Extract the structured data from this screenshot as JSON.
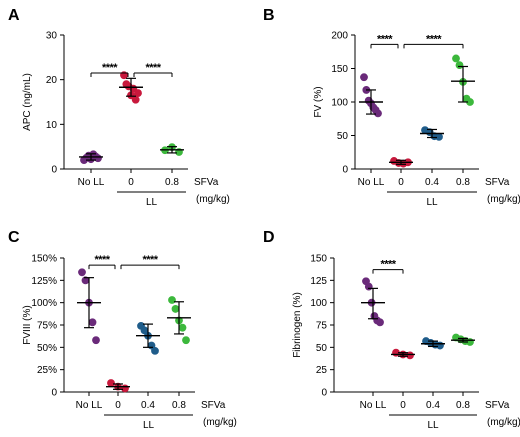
{
  "colors": {
    "No LL": "#6a2a7a",
    "0": "#c8183c",
    "0.4": "#1f5c8a",
    "0.8": "#3cb83c"
  },
  "sfva_label": "SFVa",
  "unit_label": "(mg/kg)",
  "ll_label": "LL",
  "chart_data": [
    {
      "panel": "A",
      "type": "scatter",
      "ylabel": "APC (ng/mL)",
      "ylim": [
        0,
        30
      ],
      "yticks": [
        0,
        10,
        20,
        30
      ],
      "ytick_labels": [
        "0",
        "10",
        "20",
        "30"
      ],
      "categories": [
        "No LL",
        "0",
        "0.8"
      ],
      "ll_groups": [
        "0",
        "0.8"
      ],
      "groups": [
        {
          "category": "No LL",
          "points": [
            2.0,
            2.5,
            3.0,
            2.2,
            3.3,
            2.8,
            2.4
          ],
          "mean": 2.7,
          "sd_low": 2.0,
          "sd_high": 3.4
        },
        {
          "category": "0",
          "points": [
            21.0,
            19.0,
            18.5,
            16.5,
            18.0,
            15.5,
            17.0
          ],
          "mean": 18.3,
          "sd_low": 16.3,
          "sd_high": 20.3
        },
        {
          "category": "0.8",
          "points": [
            4.2,
            4.9,
            3.8
          ],
          "mean": 4.3,
          "sd_low": 3.6,
          "sd_high": 5.0
        }
      ],
      "sig": [
        {
          "from": "No LL",
          "to": "0",
          "y": 21.5,
          "label": "****"
        },
        {
          "from": "0",
          "to": "0.8",
          "y": 21.5,
          "label": "****"
        }
      ]
    },
    {
      "panel": "B",
      "type": "scatter",
      "ylabel": "FV (%)",
      "ylim": [
        0,
        200
      ],
      "yticks": [
        0,
        50,
        100,
        150,
        200
      ],
      "ytick_labels": [
        "0",
        "50",
        "100",
        "150",
        "200"
      ],
      "categories": [
        "No LL",
        "0",
        "0.4",
        "0.8"
      ],
      "ll_groups": [
        "0",
        "0.4",
        "0.8"
      ],
      "groups": [
        {
          "category": "No LL",
          "points": [
            137,
            118,
            102,
            98,
            92,
            88,
            83
          ],
          "mean": 100,
          "sd_low": 82,
          "sd_high": 118
        },
        {
          "category": "0",
          "points": [
            12,
            9,
            8,
            10
          ],
          "mean": 10,
          "sd_low": 7,
          "sd_high": 13
        },
        {
          "category": "0.4",
          "points": [
            58,
            55,
            49,
            48
          ],
          "mean": 53,
          "sd_low": 47,
          "sd_high": 59
        },
        {
          "category": "0.8",
          "points": [
            165,
            155,
            130,
            105,
            100
          ],
          "mean": 131,
          "sd_low": 100,
          "sd_high": 153
        }
      ],
      "sig": [
        {
          "from": "No LL",
          "to": "0",
          "y": 186,
          "label": "****"
        },
        {
          "from": "0",
          "to": "0.8",
          "y": 186,
          "label": "****"
        }
      ]
    },
    {
      "panel": "C",
      "type": "scatter",
      "ylabel": "FVIII (%)",
      "ylim": [
        0,
        150
      ],
      "yticks": [
        0,
        25,
        50,
        75,
        100,
        125,
        150
      ],
      "ytick_labels": [
        "0",
        "25%",
        "50%",
        "75%",
        "100%",
        "125%",
        "150%"
      ],
      "categories": [
        "No LL",
        "0",
        "0.4",
        "0.8"
      ],
      "ll_groups": [
        "0",
        "0.4",
        "0.8"
      ],
      "groups": [
        {
          "category": "No LL",
          "points": [
            134,
            125,
            100,
            78,
            58
          ],
          "mean": 100,
          "sd_low": 72,
          "sd_high": 128
        },
        {
          "category": "0",
          "points": [
            10,
            6,
            4
          ],
          "mean": 6,
          "sd_low": 3,
          "sd_high": 9
        },
        {
          "category": "0.4",
          "points": [
            74,
            69,
            63,
            52,
            46
          ],
          "mean": 63,
          "sd_low": 50,
          "sd_high": 76
        },
        {
          "category": "0.8",
          "points": [
            103,
            93,
            80,
            72,
            58
          ],
          "mean": 83,
          "sd_low": 65,
          "sd_high": 101
        }
      ],
      "sig": [
        {
          "from": "No LL",
          "to": "0",
          "y": 142,
          "label": "****"
        },
        {
          "from": "0",
          "to": "0.8",
          "y": 142,
          "label": "****"
        }
      ]
    },
    {
      "panel": "D",
      "type": "scatter",
      "ylabel": "Fibrinogen (%)",
      "ylim": [
        0,
        150
      ],
      "yticks": [
        0,
        25,
        50,
        75,
        100,
        125,
        150
      ],
      "ytick_labels": [
        "0",
        "25",
        "50",
        "75",
        "100",
        "125",
        "150"
      ],
      "categories": [
        "No LL",
        "0",
        "0.4",
        "0.8"
      ],
      "ll_groups": [
        "0",
        "0.4",
        "0.8"
      ],
      "groups": [
        {
          "category": "No LL",
          "points": [
            124,
            118,
            100,
            85,
            80,
            78
          ],
          "mean": 100,
          "sd_low": 82,
          "sd_high": 116
        },
        {
          "category": "0",
          "points": [
            44,
            42,
            41
          ],
          "mean": 42,
          "sd_low": 40,
          "sd_high": 44
        },
        {
          "category": "0.4",
          "points": [
            57,
            55,
            53,
            52
          ],
          "mean": 54,
          "sd_low": 51,
          "sd_high": 57
        },
        {
          "category": "0.8",
          "points": [
            61,
            59,
            57,
            56
          ],
          "mean": 58,
          "sd_low": 56,
          "sd_high": 60
        }
      ],
      "sig": [
        {
          "from": "No LL",
          "to": "0",
          "y": 137,
          "label": "****"
        }
      ]
    }
  ]
}
